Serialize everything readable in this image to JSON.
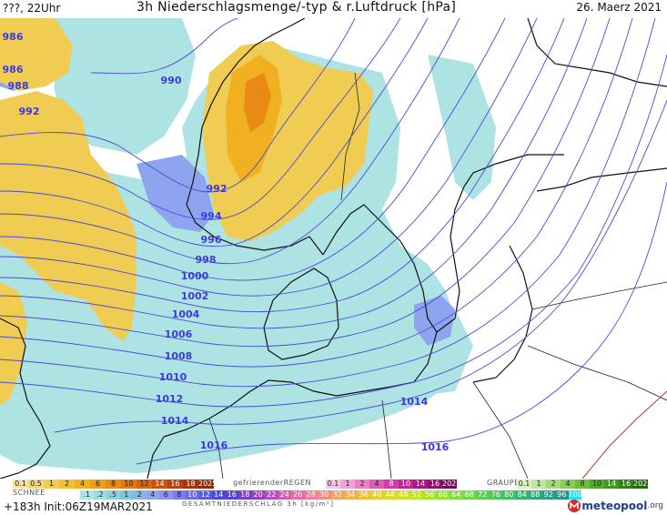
{
  "header": {
    "left": "???, 22Uhr",
    "title": "3h Niederschlagsmenge/-typ & r.Luftdruck [hPa]",
    "date": "26. Maerz 2021"
  },
  "isobars": [
    {
      "label": "986",
      "value": 986
    },
    {
      "label": "986",
      "value": 986
    },
    {
      "label": "988",
      "value": 988
    },
    {
      "label": "990",
      "value": 990
    },
    {
      "label": "992",
      "value": 992
    },
    {
      "label": "992",
      "value": 992
    },
    {
      "label": "994",
      "value": 994
    },
    {
      "label": "996",
      "value": 996
    },
    {
      "label": "998",
      "value": 998
    },
    {
      "label": "1000",
      "value": 1000
    },
    {
      "label": "1002",
      "value": 1002
    },
    {
      "label": "1004",
      "value": 1004
    },
    {
      "label": "1006",
      "value": 1006
    },
    {
      "label": "1008",
      "value": 1008
    },
    {
      "label": "1010",
      "value": 1010
    },
    {
      "label": "1012",
      "value": 1012
    },
    {
      "label": "1014",
      "value": 1014
    },
    {
      "label": "1014",
      "value": 1014
    },
    {
      "label": "1016",
      "value": 1016
    },
    {
      "label": "1016",
      "value": 1016
    }
  ],
  "legend": {
    "snow_label": "SCHNEE",
    "snow": [
      {
        "label": "0.1",
        "color": "#f6e3a0"
      },
      {
        "label": "0.5",
        "color": "#f3d57a"
      },
      {
        "label": "1",
        "color": "#f1cc52"
      },
      {
        "label": "2",
        "color": "#f0c034"
      },
      {
        "label": "4",
        "color": "#f0b020"
      },
      {
        "label": "6",
        "color": "#ee9d1a"
      },
      {
        "label": "8",
        "color": "#e98a17"
      },
      {
        "label": "10",
        "color": "#e27815"
      },
      {
        "label": "12",
        "color": "#d86612"
      },
      {
        "label": "14",
        "color": "#c95410"
      },
      {
        "label": "16",
        "color": "#b8430d"
      },
      {
        "label": "18",
        "color": "#a4350a"
      },
      {
        "label": "2025+",
        "color": "#8c2a08"
      }
    ],
    "freezing_label": "gefrierenderREGEN",
    "freezing": [
      {
        "label": "0.1",
        "color": "#f7c6e6"
      },
      {
        "label": "1",
        "color": "#f1a3d6"
      },
      {
        "label": "2",
        "color": "#ea7fc6"
      },
      {
        "label": "4",
        "color": "#e05bb6"
      },
      {
        "label": "8",
        "color": "#d43ba4"
      },
      {
        "label": "10",
        "color": "#c02592"
      },
      {
        "label": "14",
        "color": "#a81a80"
      },
      {
        "label": "16",
        "color": "#8f126e"
      },
      {
        "label": "2025+",
        "color": "#740b5c"
      }
    ],
    "graupel_label": "GRAUPEL",
    "graupel": [
      {
        "label": "0.1",
        "color": "#d9f2c2"
      },
      {
        "label": "1",
        "color": "#bfe69e"
      },
      {
        "label": "2",
        "color": "#a3d97a"
      },
      {
        "label": "4",
        "color": "#86cc58"
      },
      {
        "label": "8",
        "color": "#6cbd3e"
      },
      {
        "label": "10",
        "color": "#56a82e"
      },
      {
        "label": "14",
        "color": "#439322"
      },
      {
        "label": "16",
        "color": "#337e18"
      },
      {
        "label": "2025+",
        "color": "#256a10"
      }
    ],
    "total": [
      {
        "label": ".1",
        "color": "#aee6e6"
      },
      {
        "label": ".2",
        "color": "#9ddcdf"
      },
      {
        "label": ".5",
        "color": "#8cd2d8"
      },
      {
        "label": "1",
        "color": "#7ec6d6"
      },
      {
        "label": "2",
        "color": "#86b6e4"
      },
      {
        "label": "4",
        "color": "#8ea4ee"
      },
      {
        "label": "6",
        "color": "#8f90f0"
      },
      {
        "label": "8",
        "color": "#7f7cec"
      },
      {
        "label": "10",
        "color": "#6c6ae6"
      },
      {
        "label": "12",
        "color": "#5a5ce0"
      },
      {
        "label": "14",
        "color": "#4a4ad8"
      },
      {
        "label": "16",
        "color": "#5a3fd0"
      },
      {
        "label": "18",
        "color": "#7a3fc8"
      },
      {
        "label": "20",
        "color": "#9a3fc0"
      },
      {
        "label": "22",
        "color": "#b94cbc"
      },
      {
        "label": "24",
        "color": "#d15cb4"
      },
      {
        "label": "26",
        "color": "#e46ca8"
      },
      {
        "label": "28",
        "color": "#ef7e98"
      },
      {
        "label": "30",
        "color": "#f38f82"
      },
      {
        "label": "32",
        "color": "#f4a06a"
      },
      {
        "label": "34",
        "color": "#f2b050"
      },
      {
        "label": "36",
        "color": "#eec03a"
      },
      {
        "label": "40",
        "color": "#e6cf2c"
      },
      {
        "label": "44",
        "color": "#dcd926"
      },
      {
        "label": "48",
        "color": "#cde024"
      },
      {
        "label": "52",
        "color": "#bde426"
      },
      {
        "label": "56",
        "color": "#a9e42c"
      },
      {
        "label": "60",
        "color": "#95e236"
      },
      {
        "label": "64",
        "color": "#82de40"
      },
      {
        "label": "68",
        "color": "#70d84a"
      },
      {
        "label": "72",
        "color": "#60d054"
      },
      {
        "label": "76",
        "color": "#52c65e"
      },
      {
        "label": "80",
        "color": "#46bc68"
      },
      {
        "label": "84",
        "color": "#3cb272"
      },
      {
        "label": "88",
        "color": "#34a87c"
      },
      {
        "label": "92",
        "color": "#2e9e86"
      },
      {
        "label": "96",
        "color": "#2a9490"
      },
      {
        "label": "100",
        "color": "#28e0f0"
      }
    ],
    "total_caption": "GESAMTNIEDERSCHLAG 3h [kg/m²]"
  },
  "footer": {
    "run_info": "+183h  Init:06Z19MAR2021",
    "logo": "meteopool",
    "logo_tld": ".org"
  }
}
